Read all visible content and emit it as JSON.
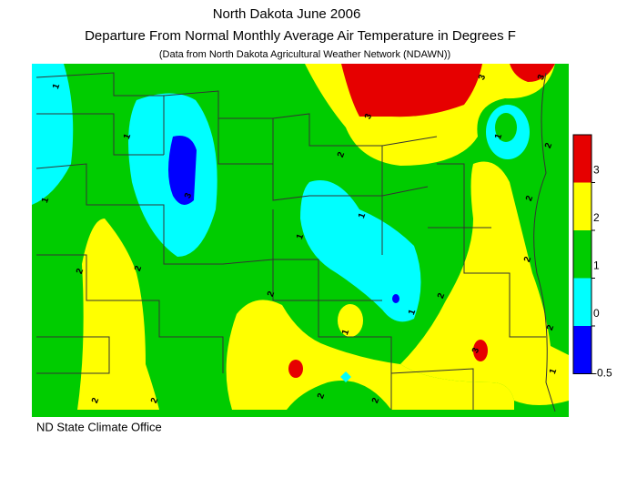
{
  "header": {
    "title": "North Dakota June 2006",
    "subtitle": "Departure From Normal Monthly Average Air Temperature in Degrees F",
    "note": "(Data from North Dakota Agricultural Weather Network (NDAWN))"
  },
  "legend": {
    "ticks": [
      3,
      2,
      1,
      0,
      -0.5
    ],
    "colors": [
      "#e60000",
      "#ffff00",
      "#00cc00",
      "#00ffff",
      "#0000ff"
    ]
  },
  "contour_labels": [
    "1",
    "1",
    "1",
    "3",
    "2",
    "2",
    "2",
    "1",
    "1",
    "2",
    "1",
    "3",
    "3",
    "3",
    "1",
    "2",
    "2",
    "2",
    "2",
    "3",
    "1",
    "2",
    "2",
    "2",
    "2",
    "2",
    "1"
  ],
  "footer": "ND State Climate Office"
}
